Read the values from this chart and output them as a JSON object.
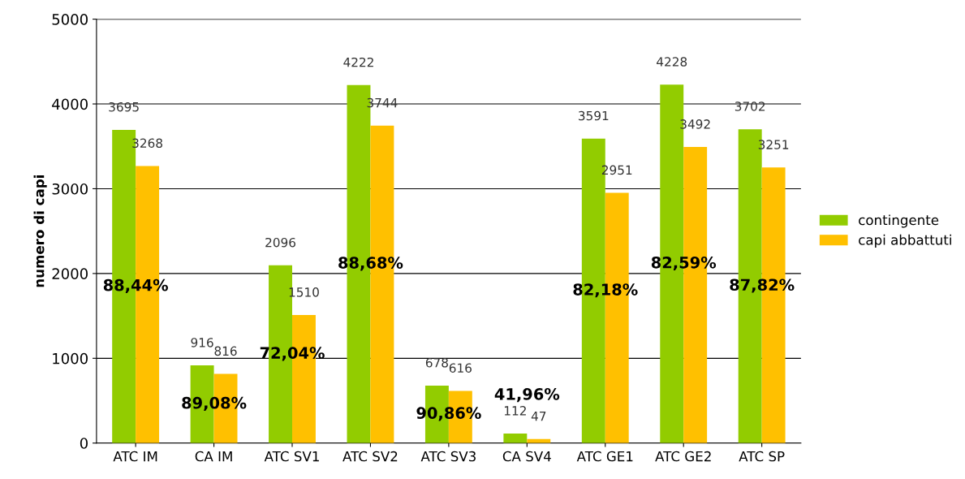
{
  "chart_data": {
    "type": "bar",
    "ylabel": "numero di capi",
    "categories": [
      "ATC IM",
      "CA IM",
      "ATC SV1",
      "ATC SV2",
      "ATC SV3",
      "CA SV4",
      "ATC GE1",
      "ATC GE2",
      "ATC SP"
    ],
    "series": [
      {
        "name": "contingente",
        "color": "#92cc00",
        "values": [
          3695,
          916,
          2096,
          4222,
          678,
          112,
          3591,
          4228,
          3702
        ]
      },
      {
        "name": "capi abbattuti",
        "color": "#ffc000",
        "values": [
          3268,
          816,
          1510,
          3744,
          616,
          47,
          2951,
          3492,
          3251
        ]
      }
    ],
    "ylim": [
      0,
      5000
    ],
    "yticks": [
      0,
      1000,
      2000,
      3000,
      4000,
      5000
    ],
    "grid": "y",
    "legend": "right",
    "data_labels": true,
    "annotations": [
      "88,44%",
      "89,08%",
      "72,04%",
      "88,68%",
      "90,86%",
      "41,96%",
      "82,18%",
      "82,59%",
      "87,82%"
    ]
  }
}
